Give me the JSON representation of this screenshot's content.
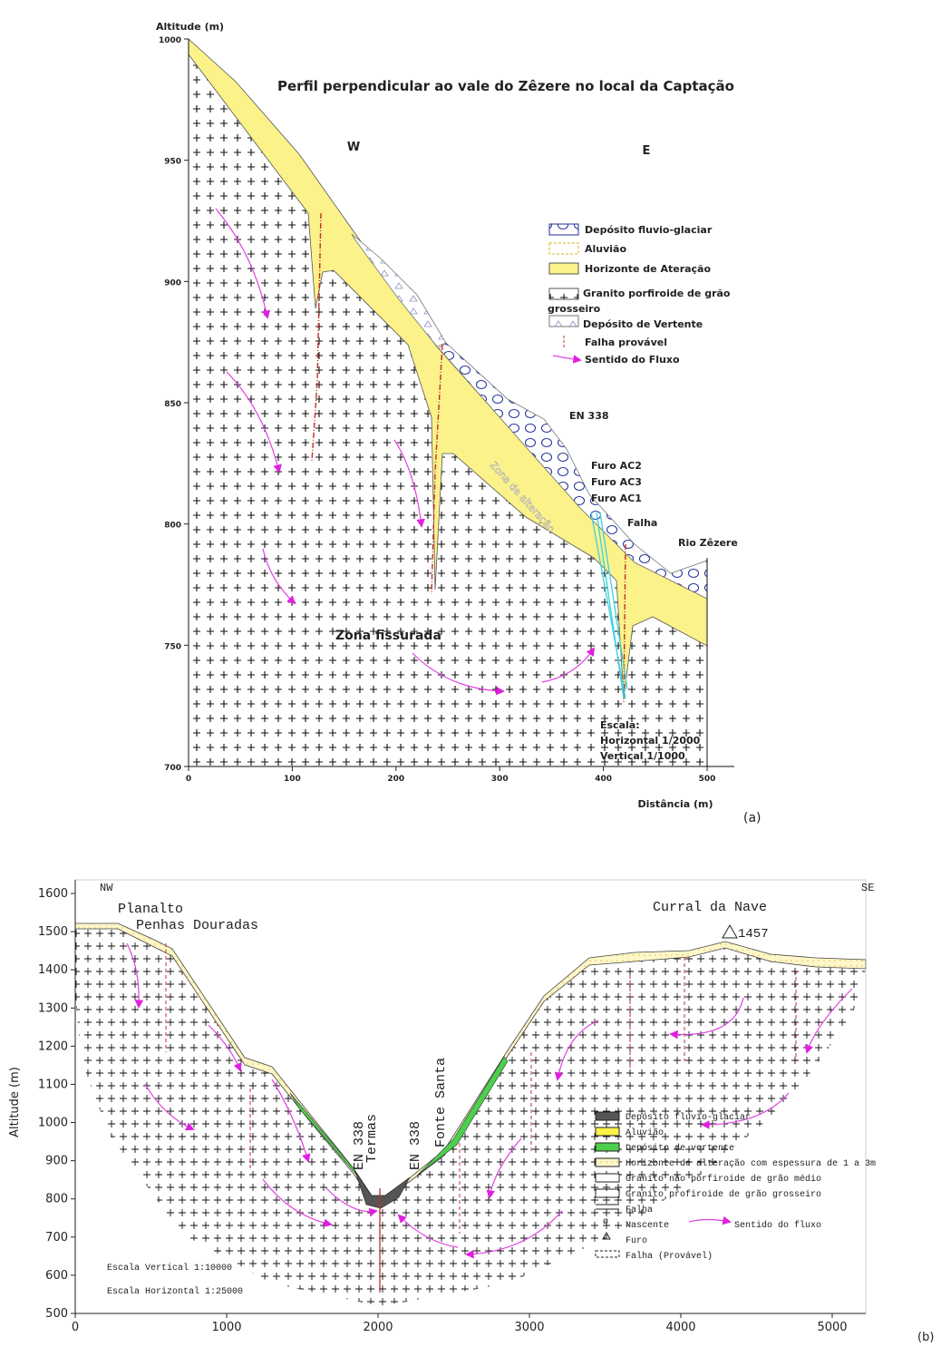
{
  "panel_a": {
    "title": "Perfil perpendicular ao vale do Zêzere no local da Captação",
    "y_axis_label": "Altitude (m)",
    "x_axis_label": "Distância (m)",
    "yticks": [
      700,
      750,
      800,
      850,
      900,
      950,
      1000
    ],
    "ylim": [
      700,
      1000
    ],
    "xticks": [
      0,
      100,
      200,
      300,
      400,
      500
    ],
    "xlim": [
      0,
      500
    ],
    "directions": [
      "W",
      "E"
    ],
    "annotations": [
      "EN 338",
      "Furo AC2",
      "Furo AC3",
      "Furo AC1",
      "Falha",
      "Rio Zêzere",
      "Zona de alteração",
      "Zona fissurada"
    ],
    "scale": [
      "Escala:",
      "Horizontal 1/2000",
      "Vertical 1/1000"
    ],
    "legend": [
      "Depósito fluvio-glaciar",
      "Aluvião",
      "Horizonte de Ateração",
      "Granito porfiroide de grão",
      "grosseiro",
      "Depósito de Vertente",
      "Falha provável",
      "Sentido do Fluxo"
    ],
    "label": "(a)"
  },
  "panel_b": {
    "y_axis_label": "Altitude (m)",
    "yticks": [
      500,
      600,
      700,
      800,
      900,
      1000,
      1100,
      1200,
      1300,
      1400,
      1500,
      1600
    ],
    "ylim": [
      500,
      1600
    ],
    "xticks": [
      0,
      1000,
      2000,
      3000,
      4000,
      5000
    ],
    "xlim": [
      0,
      5000
    ],
    "directions": [
      "NW",
      "SE"
    ],
    "annotations": [
      "Planalto",
      "Penhas Douradas",
      "Curral da Nave",
      "1457",
      "EN 338",
      "Termas",
      "EN 338",
      "Fonte Santa"
    ],
    "scale": [
      "Escala Vertical 1:10000",
      "Escala Horizontal 1:25000"
    ],
    "legend": [
      "Depósito fluvio-glaciar",
      "Aluvião",
      "Depósito de vertente",
      "Horizonte de alteração com espessura de 1 a 3m",
      "Granito não porfiroide de grão médio",
      "Granito profiroide de grão grosseiro",
      "Falha",
      "Nascente",
      "Sentido do fluxo",
      "Furo",
      "Falha (Provável)"
    ],
    "label": "(b)"
  }
}
